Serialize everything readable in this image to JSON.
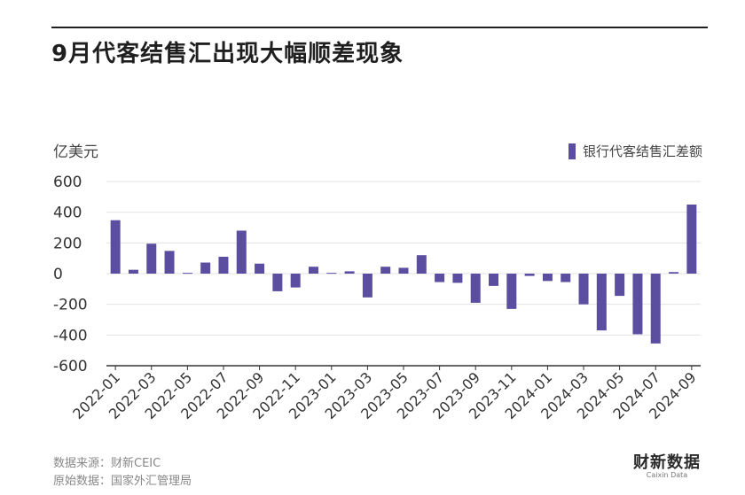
{
  "title": "9月代客结售汇出现大幅顺差现象",
  "unit_label": "亿美元",
  "footer": {
    "source": "数据来源：财新CEIC",
    "origin": "原始数据：国家外汇管理局"
  },
  "logo": {
    "cn": "财新数据",
    "en": "Caixin Data"
  },
  "colors": {
    "bar": "#5b4ea0",
    "grid": "#e3e3e3",
    "axis": "#333333"
  },
  "chart_data": {
    "type": "bar",
    "title": "9月代客结售汇出现大幅顺差现象",
    "ylabel": "亿美元",
    "ylim": [
      -600,
      600
    ],
    "yticks": [
      600,
      400,
      200,
      0,
      -200,
      -400,
      -600
    ],
    "legend": {
      "label": "银行代客结售汇差额",
      "position": "top-right"
    },
    "grid": true,
    "categories": [
      "2022-01",
      "2022-02",
      "2022-03",
      "2022-04",
      "2022-05",
      "2022-06",
      "2022-07",
      "2022-08",
      "2022-09",
      "2022-10",
      "2022-11",
      "2022-12",
      "2023-01",
      "2023-02",
      "2023-03",
      "2023-04",
      "2023-05",
      "2023-06",
      "2023-07",
      "2023-08",
      "2023-09",
      "2023-10",
      "2023-11",
      "2023-12",
      "2024-01",
      "2024-02",
      "2024-03",
      "2024-04",
      "2024-05",
      "2024-06",
      "2024-07",
      "2024-08",
      "2024-09"
    ],
    "tick_labels": [
      "2022-01",
      "2022-03",
      "2022-05",
      "2022-07",
      "2022-09",
      "2022-11",
      "2023-01",
      "2023-03",
      "2023-05",
      "2023-07",
      "2023-09",
      "2023-11",
      "2024-01",
      "2024-03",
      "2024-05",
      "2024-07",
      "2024-09"
    ],
    "series": [
      {
        "name": "银行代客结售汇差额",
        "values": [
          348,
          25,
          195,
          148,
          5,
          72,
          110,
          280,
          65,
          -115,
          -90,
          45,
          5,
          15,
          -155,
          45,
          38,
          120,
          -55,
          -60,
          -190,
          -80,
          -230,
          -15,
          -48,
          -55,
          -200,
          -370,
          -145,
          -395,
          -455,
          10,
          450
        ]
      }
    ]
  }
}
